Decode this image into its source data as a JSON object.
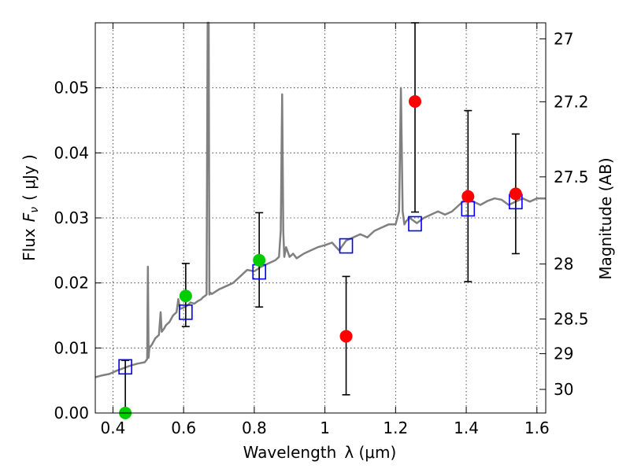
{
  "chart_data": {
    "type": "scatter",
    "xlabel": "Wavelength",
    "xlabel_symbol": "λ (μm)",
    "ylabel": "Flux",
    "ylabel_symbol": "F",
    "ylabel_sub": "ν",
    "ylabel_units": "( μJy )",
    "right_ylabel": "Magnitude (AB)",
    "xlim": [
      0.35,
      1.625
    ],
    "ylim": [
      0.0,
      0.06
    ],
    "grid": true,
    "x_ticks": [
      0.4,
      0.6,
      0.8,
      1.0,
      1.2,
      1.4,
      1.6
    ],
    "x_tick_labels": [
      "0.4",
      "0.6",
      "0.8",
      "1",
      "1.2",
      "1.4",
      "1.6"
    ],
    "y_ticks": [
      0.0,
      0.01,
      0.02,
      0.03,
      0.04,
      0.05
    ],
    "y_tick_labels": [
      "0.00",
      "0.01",
      "0.02",
      "0.03",
      "0.04",
      "0.05"
    ],
    "right_ticks": [
      {
        "label": "27",
        "flux": 0.05754
      },
      {
        "label": "27.2",
        "flux": 0.04786
      },
      {
        "label": "27.5",
        "flux": 0.03631
      },
      {
        "label": "28",
        "flux": 0.02291
      },
      {
        "label": "28.5",
        "flux": 0.01445
      },
      {
        "label": "29",
        "flux": 0.00912
      },
      {
        "label": "30",
        "flux": 0.00363
      }
    ],
    "series": [
      {
        "kind": "model_spectrum",
        "color": "#808080",
        "x": [
          0.35,
          0.37,
          0.39,
          0.41,
          0.43,
          0.45,
          0.47,
          0.49,
          0.497,
          0.499,
          0.501,
          0.503,
          0.51,
          0.52,
          0.53,
          0.535,
          0.538,
          0.545,
          0.55,
          0.56,
          0.57,
          0.58,
          0.585,
          0.59,
          0.6,
          0.61,
          0.62,
          0.63,
          0.64,
          0.65,
          0.655,
          0.66,
          0.665,
          0.668,
          0.671,
          0.673,
          0.676,
          0.68,
          0.7,
          0.72,
          0.74,
          0.76,
          0.78,
          0.8,
          0.82,
          0.84,
          0.86,
          0.87,
          0.875,
          0.879,
          0.882,
          0.885,
          0.89,
          0.9,
          0.91,
          0.92,
          0.94,
          0.96,
          0.98,
          1.0,
          1.02,
          1.04,
          1.06,
          1.08,
          1.1,
          1.12,
          1.14,
          1.16,
          1.18,
          1.2,
          1.21,
          1.215,
          1.22,
          1.225,
          1.23,
          1.24,
          1.26,
          1.28,
          1.3,
          1.32,
          1.34,
          1.36,
          1.38,
          1.4,
          1.42,
          1.44,
          1.46,
          1.48,
          1.5,
          1.52,
          1.54,
          1.56,
          1.58,
          1.6,
          1.625
        ],
        "y": [
          0.0055,
          0.0058,
          0.006,
          0.0065,
          0.0069,
          0.0073,
          0.0076,
          0.0078,
          0.0083,
          0.0225,
          0.0085,
          0.01,
          0.0105,
          0.0115,
          0.012,
          0.0155,
          0.0125,
          0.013,
          0.0135,
          0.014,
          0.015,
          0.0155,
          0.0175,
          0.016,
          0.0162,
          0.0165,
          0.017,
          0.0168,
          0.0172,
          0.0175,
          0.0178,
          0.018,
          0.0182,
          0.06,
          0.06,
          0.0182,
          0.0185,
          0.0183,
          0.019,
          0.0195,
          0.02,
          0.021,
          0.022,
          0.0218,
          0.0225,
          0.023,
          0.0235,
          0.024,
          0.028,
          0.049,
          0.028,
          0.024,
          0.0255,
          0.024,
          0.0245,
          0.0238,
          0.0245,
          0.025,
          0.0255,
          0.0258,
          0.0262,
          0.025,
          0.0265,
          0.027,
          0.0275,
          0.027,
          0.028,
          0.0285,
          0.029,
          0.029,
          0.031,
          0.05,
          0.031,
          0.029,
          0.0295,
          0.03,
          0.0292,
          0.03,
          0.0305,
          0.031,
          0.0305,
          0.031,
          0.032,
          0.033,
          0.0325,
          0.032,
          0.0326,
          0.033,
          0.0328,
          0.032,
          0.0325,
          0.033,
          0.0325,
          0.033,
          0.033
        ]
      },
      {
        "kind": "model_photometry",
        "marker": "open-square",
        "color": "#0000ff",
        "x": [
          0.435,
          0.606,
          0.814,
          1.06,
          1.255,
          1.405,
          1.54
        ],
        "y": [
          0.0071,
          0.0155,
          0.0217,
          0.0257,
          0.0291,
          0.0314,
          0.0325
        ]
      },
      {
        "kind": "detections",
        "marker": "filled-circle",
        "color": "#00cc00",
        "x": [
          0.435,
          0.606,
          0.814
        ],
        "y": [
          0.0,
          0.018,
          0.0235
        ],
        "yerr_low": [
          0.0,
          0.0047,
          0.0072
        ],
        "yerr_high": [
          0.0,
          0.005,
          0.0073
        ]
      },
      {
        "kind": "non_detections",
        "marker": "filled-circle",
        "color": "#ff0000",
        "x": [
          1.06,
          1.255,
          1.405,
          1.54
        ],
        "y": [
          0.0118,
          0.0479,
          0.0333,
          0.0337
        ],
        "yerr_low": [
          0.009,
          0.017,
          0.0131,
          0.0092
        ],
        "yerr_high": [
          0.0092,
          0.0121,
          0.0132,
          0.0092
        ]
      }
    ]
  }
}
